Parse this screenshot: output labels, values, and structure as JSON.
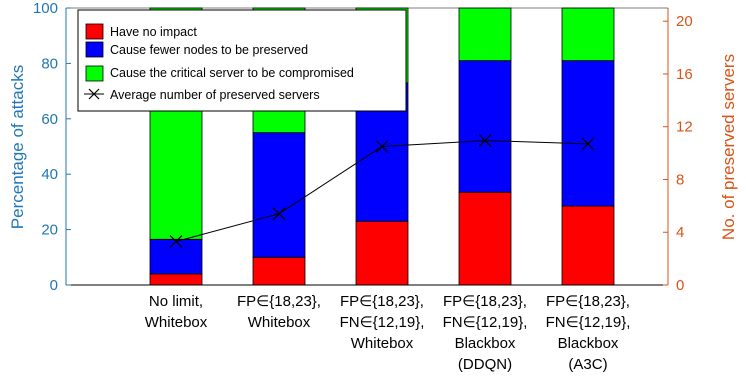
{
  "chart_data": {
    "type": "bar",
    "stacked": true,
    "categories": [
      [
        "No limit,",
        "Whitebox"
      ],
      [
        "FP∈{18,23},",
        "Whitebox"
      ],
      [
        "FP∈{18,23},",
        "FN∈{12,19},",
        "Whitebox"
      ],
      [
        "FP∈{18,23},",
        "FN∈{12,19},",
        "Blackbox",
        "(DDQN)"
      ],
      [
        "FP∈{18,23},",
        "FN∈{12,19},",
        "Blackbox",
        "(A3C)"
      ]
    ],
    "series": [
      {
        "name": "Have no impact",
        "color": "#ff0000",
        "values": [
          4,
          10,
          23,
          33.5,
          28.5
        ]
      },
      {
        "name": "Cause fewer nodes to be preserved",
        "color": "#0000ff",
        "values": [
          12.5,
          45,
          50,
          47.5,
          52.5
        ]
      },
      {
        "name": "Cause the critical server to be compromised",
        "color": "#00ff00",
        "values": [
          83.5,
          45,
          27,
          19,
          19
        ]
      }
    ],
    "line_series": {
      "name": "Average number of preserved servers",
      "color": "#000000",
      "marker": "x",
      "axis": "right",
      "values": [
        3.3,
        5.4,
        10.5,
        10.95,
        10.7
      ]
    },
    "ylabel": "Percentage of attacks",
    "ylabel_right": "No. of preserved servers",
    "ylim": [
      0,
      100
    ],
    "ylim_right": [
      0,
      21
    ],
    "yticks": [
      0,
      20,
      40,
      60,
      80,
      100
    ],
    "yticks_right": [
      0,
      4,
      8,
      12,
      16,
      20
    ],
    "left_axis_color": "#1f77b4",
    "right_axis_color": "#d95319",
    "legend_position": "top-left"
  }
}
